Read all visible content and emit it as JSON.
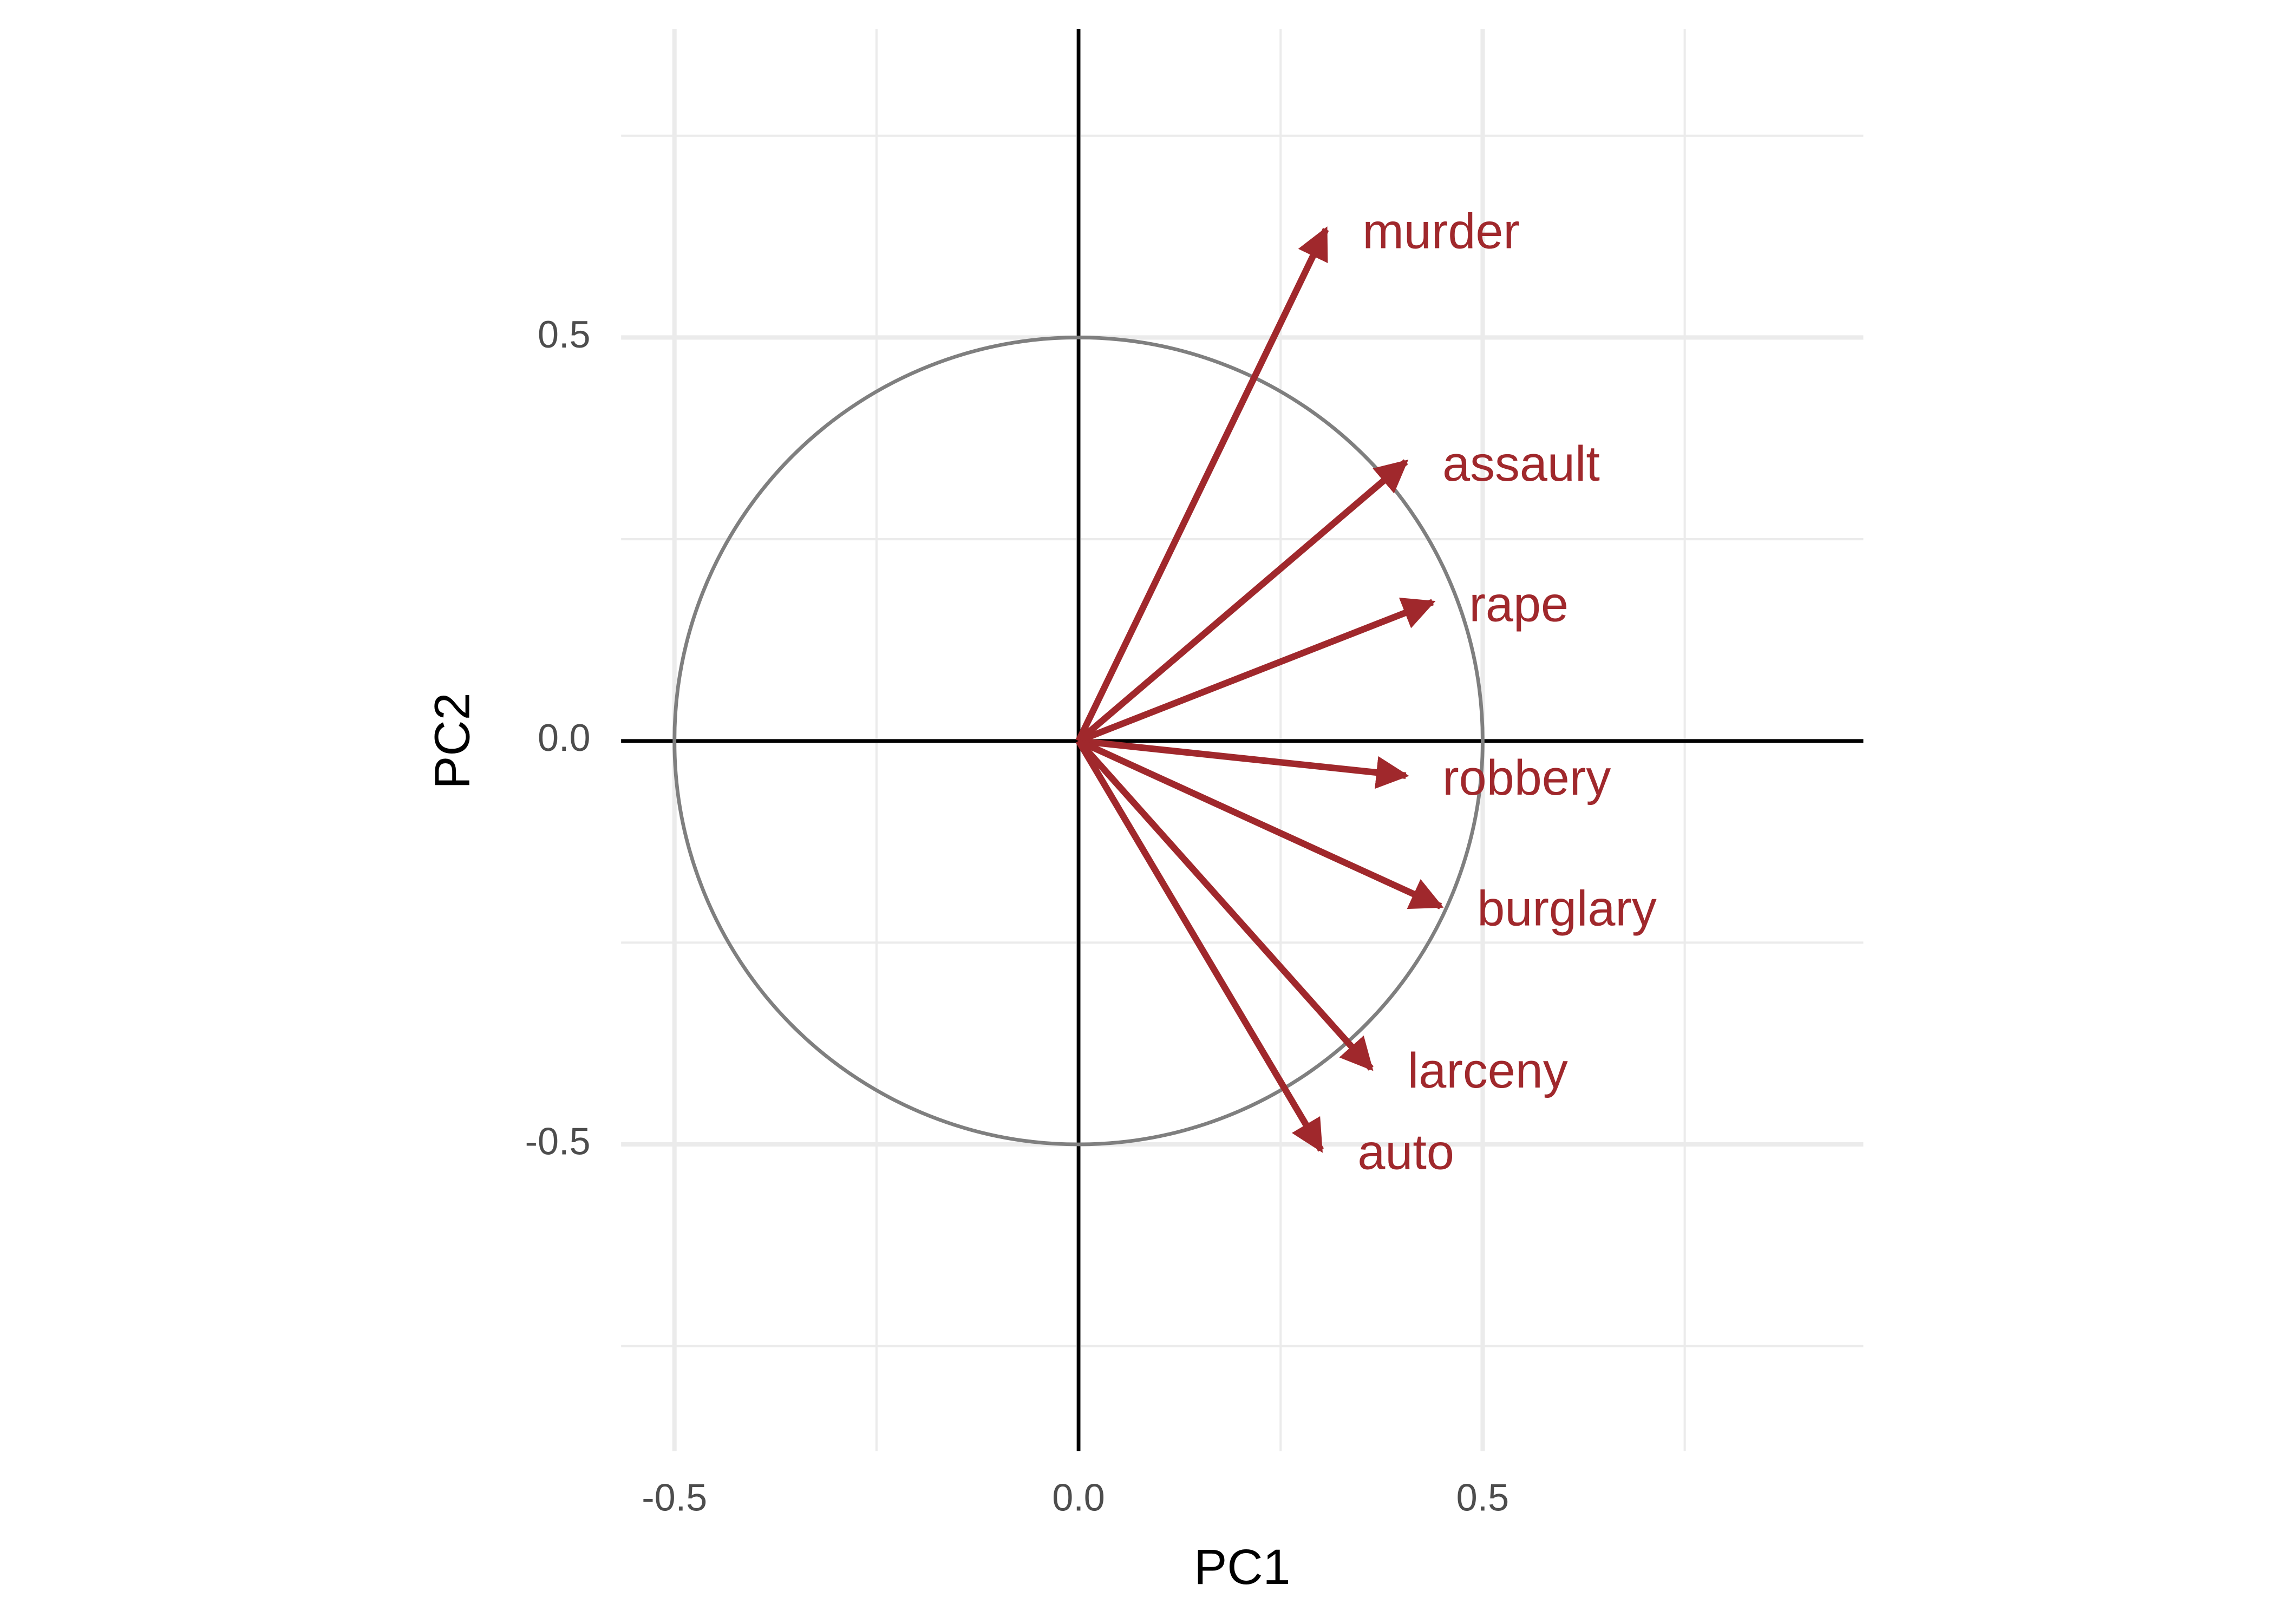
{
  "chart_data": {
    "type": "vector",
    "x_label": "PC1",
    "y_label": "PC2",
    "categories": [
      "murder",
      "assault",
      "rape",
      "robbery",
      "burglary",
      "larceny",
      "auto"
    ],
    "x": [
      0.306,
      0.405,
      0.438,
      0.405,
      0.448,
      0.362,
      0.3
    ],
    "values": [
      0.634,
      0.346,
      0.172,
      -0.043,
      -0.205,
      -0.406,
      -0.507
    ],
    "color": "#a0282c",
    "circle_radius": 0.5,
    "xlim": [
      -0.566,
      0.971
    ],
    "ylim": [
      -0.88,
      0.882
    ],
    "xticks": [
      -0.5,
      {
        "value": 0,
        "label": "0.0"
      },
      0.5
    ],
    "yticks": [
      -0.5,
      {
        "value": 0,
        "label": "0.0"
      },
      0.5
    ],
    "xminor": [
      -0.25,
      0.25,
      0.75
    ],
    "yminor": [
      -0.75,
      -0.25,
      0.25,
      0.75
    ],
    "grid": true
  }
}
